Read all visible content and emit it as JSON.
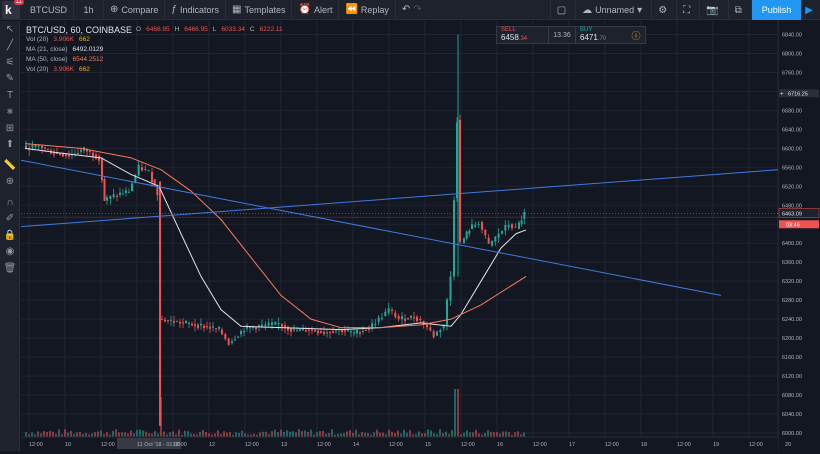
{
  "topbar": {
    "logo_badge": "11",
    "symbol": "BTCUSD",
    "interval": "1h",
    "compare": "Compare",
    "indicators": "Indicators",
    "templates": "Templates",
    "alert": "Alert",
    "replay": "Replay",
    "layout_name": "Unnamed",
    "publish": "Publish"
  },
  "sidebar": {
    "icons": [
      "cursor-icon",
      "trend-line-icon",
      "fib-icon",
      "brush-icon",
      "text-icon",
      "pattern-icon",
      "measure-icon",
      "arrow-up-icon",
      "ruler-icon",
      "zoom-icon",
      "magnet-icon",
      "lock-drawing-icon",
      "lock-icon",
      "eye-icon",
      "trash-icon"
    ]
  },
  "legend": {
    "title": "BTC/USD, 60, COINBASE",
    "ohlc": {
      "o_label": "O",
      "o": "6466.95",
      "h_label": "H",
      "h": "6466.95",
      "l_label": "L",
      "l": "6033.34",
      "c_label": "C",
      "c": "6222.11"
    },
    "rows": [
      {
        "label": "Vol (20)",
        "values": [
          "3.906K",
          "662"
        ],
        "colors": [
          "#ef5350",
          "#f0b90b"
        ]
      },
      {
        "label": "MA (21, close)",
        "values": [
          "6492.0129"
        ],
        "colors": [
          "#e0e3eb"
        ]
      },
      {
        "label": "MA (50, close)",
        "values": [
          "6544.2512"
        ],
        "colors": [
          "#f57c5b"
        ]
      },
      {
        "label": "Vol (20)",
        "values": [
          "3.906K",
          "662"
        ],
        "colors": [
          "#ef5350",
          "#f0b90b"
        ]
      }
    ]
  },
  "trade": {
    "sell_label": "SELL",
    "sell_price_main": "6458",
    "sell_price_frac": ".34",
    "spread": "13.36",
    "buy_label": "BUY",
    "buy_price_main": "6471",
    "buy_price_frac": ".70"
  },
  "price_axis": {
    "ticks": [
      "6840.00",
      "6800.00",
      "6760.00",
      "6720.00",
      "6680.00",
      "6640.00",
      "6600.00",
      "6560.00",
      "6520.00",
      "6480.00",
      "6440.00",
      "6400.00",
      "6360.00",
      "6320.00",
      "6280.00",
      "6240.00",
      "6200.00",
      "6160.00",
      "6120.00",
      "6080.00",
      "6040.00",
      "6000.00"
    ],
    "crosshair_label": "6716.25",
    "last_price_label": "6463.09",
    "countdown_label": "03:46",
    "colors": {
      "up": "#26a69a",
      "down": "#ef5350",
      "ma21": "#e0e3eb",
      "ma50": "#f57c5b",
      "trend": "#3d7be0"
    }
  },
  "time_axis": {
    "ticks": [
      "12:00",
      "10",
      "12:00",
      "11 Oct '18 - 01:00",
      "12:00",
      "12",
      "12:00",
      "13",
      "12:00",
      "14",
      "12:00",
      "15",
      "12:00",
      "16",
      "12:00",
      "17",
      "12:00",
      "18",
      "12:00",
      "19",
      "12:00",
      "20"
    ],
    "highlight_index": 3
  },
  "chart_data": {
    "type": "candlestick",
    "symbol": "BTC/USD",
    "interval": "60",
    "exchange": "COINBASE",
    "y_range": [
      6000,
      6860
    ],
    "last_price": 6463.09,
    "indicators": [
      "Vol (20)",
      "MA (21, close)",
      "MA (50, close)"
    ]
  }
}
